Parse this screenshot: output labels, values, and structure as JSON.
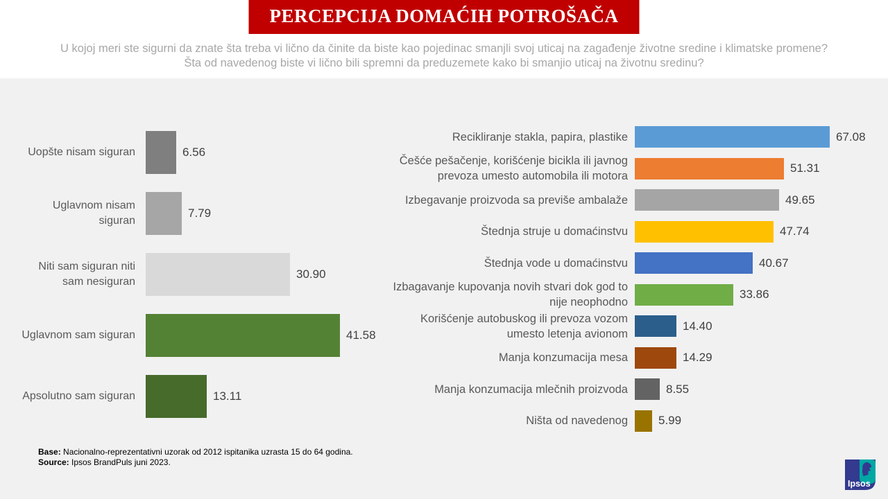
{
  "page": {
    "top_background": "#ffffff",
    "chart_background": "#f1f1f2"
  },
  "header": {
    "title": "PERCEPCIJA DOMAĆIH POTROŠAČA",
    "title_bg": "#c00000",
    "subtitle_line1": "U kojoj meri ste sigurni da znate šta treba vi lično da činite da biste kao pojedinac smanjli svoj uticaj na zagađenje životne sredine i klimatske promene?",
    "subtitle_line2": "Šta od navedenog biste vi lično bili spremni da preduzemete kako bi smanjio uticaj na životnu sredinu?"
  },
  "chart_data": [
    {
      "type": "bar",
      "orientation": "horizontal",
      "title": "",
      "categories": [
        "Uopšte nisam siguran",
        "Uglavnom nisam siguran",
        "Niti sam siguran niti sam nesiguran",
        "Uglavnom sam siguran",
        "Apsolutno sam siguran"
      ],
      "values": [
        6.56,
        7.79,
        30.9,
        41.58,
        13.11
      ],
      "colors": [
        "#7f7f7f",
        "#a6a6a6",
        "#d9d9d9",
        "#548235",
        "#466b2a"
      ],
      "xlim": [
        0,
        50
      ],
      "grid": false,
      "legend": false,
      "data_labels": true
    },
    {
      "type": "bar",
      "orientation": "horizontal",
      "title": "",
      "categories": [
        "Recikliranje stakla, papira, plastike",
        "Češće pešačenje, korišćenje bicikla ili javnog prevoza umesto automobila ili motora",
        "Izbegavanje proizvoda sa previše ambalaže",
        "Štednja struje u domaćinstvu",
        "Štednja vode u domaćinstvu",
        "Izbagavanje kupovanja novih stvari dok god to nije neophodno",
        "Korišćenje autobuskog ili prevoza vozom umesto letenja avionom",
        "Manja konzumacija mesa",
        "Manja konzumacija mlečnih proizvoda",
        "Ništa od navedenog"
      ],
      "values": [
        67.08,
        51.31,
        49.65,
        47.74,
        40.67,
        33.86,
        14.4,
        14.29,
        8.55,
        5.99
      ],
      "colors": [
        "#5b9bd5",
        "#ed7d31",
        "#a5a5a5",
        "#ffc000",
        "#4472c4",
        "#70ad47",
        "#2b5e8b",
        "#9e480e",
        "#636363",
        "#997300"
      ],
      "xlim": [
        0,
        75
      ],
      "grid": false,
      "legend": false,
      "data_labels": true
    }
  ],
  "footer": {
    "base_label": "Base:",
    "base_text": " Nacionalno-reprezentativni uzorak od 2012 ispitanika uzrasta 15 do 64 godina.",
    "source_label": "Source:",
    "source_text": " Ipsos BrandPuls juni 2023.",
    "logo_text": "Ipsos",
    "logo_blue": "#333a8f",
    "logo_teal": "#00a7a3"
  }
}
